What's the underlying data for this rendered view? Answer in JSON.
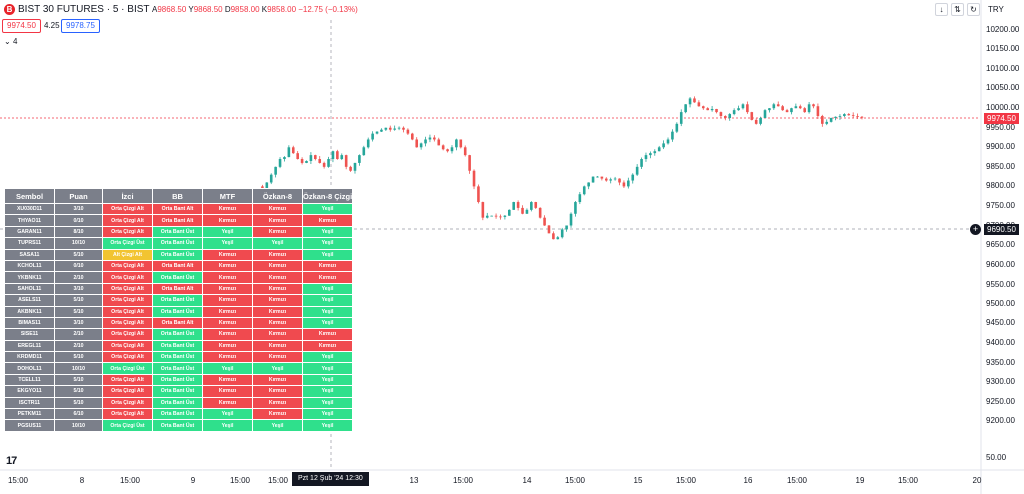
{
  "header": {
    "title": "BIST 30 FUTURES · 5 · BIST",
    "ohlc": [
      {
        "k": "A",
        "v": "9868.50"
      },
      {
        "k": "Y",
        "v": "9868.50"
      },
      {
        "k": "D",
        "v": "9858.00"
      },
      {
        "k": "K",
        "v": "9858.00"
      },
      {
        "k": "",
        "v": "−12.75 (−0.13%)"
      }
    ],
    "bid": "9974.50",
    "spread": "4.25",
    "ask": "9978.75",
    "indicators_collapsed": "4",
    "currency": "TRY"
  },
  "colors": {
    "up": "#26a69a",
    "down": "#ef5350",
    "price_tag": "#f23645",
    "table_header": "#7b7f8a",
    "red": "#f04a4f",
    "green": "#2fe08c",
    "yellow": "#f2c431"
  },
  "y_axis": {
    "ticks": [
      "10200.00",
      "10150.00",
      "10100.00",
      "10050.00",
      "10000.00",
      "9950.00",
      "9900.00",
      "9850.00",
      "9800.00",
      "9750.00",
      "9700.00",
      "9650.00",
      "9600.00",
      "9550.00",
      "9500.00",
      "9450.00",
      "9400.00",
      "9350.00",
      "9300.00",
      "9250.00",
      "9200.00",
      "50.00"
    ],
    "last_price": "9974.50",
    "crosshair_price": "9690.50"
  },
  "x_axis": {
    "ticks": [
      "15:00",
      "8",
      "15:00",
      "9",
      "15:00",
      "15:00",
      "13",
      "15:00",
      "14",
      "15:00",
      "15",
      "15:00",
      "16",
      "15:00",
      "19",
      "15:00",
      "20"
    ],
    "crosshair_label": "Pzt 12 Şub '24   12:30"
  },
  "chart_data": {
    "type": "candlestick",
    "ylim": [
      9180,
      10230
    ],
    "last_price": 9974.5,
    "crosshair_price": 9690.5,
    "close_path": [
      9800,
      9795,
      9810,
      9830,
      9850,
      9870,
      9875,
      9900,
      9885,
      9870,
      9860,
      9865,
      9880,
      9870,
      9860,
      9850,
      9870,
      9890,
      9870,
      9880,
      9850,
      9840,
      9860,
      9880,
      9900,
      9920,
      9935,
      9940,
      9945,
      9950,
      9945,
      9948,
      9950,
      9945,
      9935,
      9920,
      9900,
      9910,
      9920,
      9925,
      9920,
      9905,
      9895,
      9890,
      9900,
      9920,
      9900,
      9880,
      9840,
      9800,
      9760,
      9720,
      9725,
      9725,
      9723,
      9722,
      9725,
      9740,
      9760,
      9745,
      9730,
      9740,
      9760,
      9745,
      9720,
      9700,
      9680,
      9665,
      9670,
      9690,
      9700,
      9730,
      9760,
      9780,
      9800,
      9810,
      9825,
      9825,
      9820,
      9815,
      9818,
      9820,
      9810,
      9800,
      9815,
      9830,
      9850,
      9870,
      9880,
      9885,
      9890,
      9900,
      9910,
      9920,
      9940,
      9960,
      9990,
      10010,
      10025,
      10015,
      10005,
      10000,
      9995,
      9998,
      9990,
      9980,
      9975,
      9985,
      9995,
      10000,
      10010,
      9990,
      9970,
      9960,
      9975,
      9995,
      10000,
      10010,
      10005,
      9995,
      9990,
      10000,
      10005,
      10000,
      9990,
      10010,
      10005,
      9980,
      9960,
      9965,
      9975,
      9978,
      9980,
      9985,
      9982,
      9980,
      9978,
      9976
    ],
    "start_x": 258,
    "end_x": 862
  },
  "table": {
    "headers": [
      "Sembol",
      "Puan",
      "İzci",
      "BB",
      "MTF",
      "Özkan-8",
      "Özkan-8 Çizgi"
    ],
    "rows": [
      [
        [
          "XU030D11",
          "gray"
        ],
        [
          "3/10",
          "gray"
        ],
        [
          "Orta Çizgi Alt",
          "red"
        ],
        [
          "Orta Bant Alt",
          "red"
        ],
        [
          "Kırmızı",
          "red"
        ],
        [
          "Kırmızı",
          "red"
        ],
        [
          "Yeşil",
          "green"
        ]
      ],
      [
        [
          "THYAO11",
          "gray"
        ],
        [
          "0/10",
          "gray"
        ],
        [
          "Orta Çizgi Alt",
          "red"
        ],
        [
          "Orta Bant Alt",
          "red"
        ],
        [
          "Kırmızı",
          "red"
        ],
        [
          "Kırmızı",
          "red"
        ],
        [
          "Kırmızı",
          "red"
        ]
      ],
      [
        [
          "GARAN11",
          "gray"
        ],
        [
          "8/10",
          "gray"
        ],
        [
          "Orta Çizgi Alt",
          "red"
        ],
        [
          "Orta Bant Üst",
          "green"
        ],
        [
          "Yeşil",
          "green"
        ],
        [
          "Kırmızı",
          "red"
        ],
        [
          "Yeşil",
          "green"
        ]
      ],
      [
        [
          "TUPRS11",
          "gray"
        ],
        [
          "10/10",
          "gray"
        ],
        [
          "Orta Çizgi Üst",
          "green"
        ],
        [
          "Orta Bant Üst",
          "green"
        ],
        [
          "Yeşil",
          "green"
        ],
        [
          "Yeşil",
          "green"
        ],
        [
          "Yeşil",
          "green"
        ]
      ],
      [
        [
          "SASA11",
          "gray"
        ],
        [
          "5/10",
          "gray"
        ],
        [
          "Alt Çizgi Alt",
          "yellow"
        ],
        [
          "Orta Bant Üst",
          "green"
        ],
        [
          "Kırmızı",
          "red"
        ],
        [
          "Kırmızı",
          "red"
        ],
        [
          "Yeşil",
          "green"
        ]
      ],
      [
        [
          "KCHOL11",
          "gray"
        ],
        [
          "0/10",
          "gray"
        ],
        [
          "Orta Çizgi Alt",
          "red"
        ],
        [
          "Orta Bant Alt",
          "red"
        ],
        [
          "Kırmızı",
          "red"
        ],
        [
          "Kırmızı",
          "red"
        ],
        [
          "Kırmızı",
          "red"
        ]
      ],
      [
        [
          "YKBNK11",
          "gray"
        ],
        [
          "2/10",
          "gray"
        ],
        [
          "Orta Çizgi Alt",
          "red"
        ],
        [
          "Orta Bant Üst",
          "green"
        ],
        [
          "Kırmızı",
          "red"
        ],
        [
          "Kırmızı",
          "red"
        ],
        [
          "Kırmızı",
          "red"
        ]
      ],
      [
        [
          "SAHOL11",
          "gray"
        ],
        [
          "3/10",
          "gray"
        ],
        [
          "Orta Çizgi Alt",
          "red"
        ],
        [
          "Orta Bant Alt",
          "red"
        ],
        [
          "Kırmızı",
          "red"
        ],
        [
          "Kırmızı",
          "red"
        ],
        [
          "Yeşil",
          "green"
        ]
      ],
      [
        [
          "ASELS11",
          "gray"
        ],
        [
          "5/10",
          "gray"
        ],
        [
          "Orta Çizgi Alt",
          "red"
        ],
        [
          "Orta Bant Üst",
          "green"
        ],
        [
          "Kırmızı",
          "red"
        ],
        [
          "Kırmızı",
          "red"
        ],
        [
          "Yeşil",
          "green"
        ]
      ],
      [
        [
          "AKBNK11",
          "gray"
        ],
        [
          "5/10",
          "gray"
        ],
        [
          "Orta Çizgi Alt",
          "red"
        ],
        [
          "Orta Bant Üst",
          "green"
        ],
        [
          "Kırmızı",
          "red"
        ],
        [
          "Kırmızı",
          "red"
        ],
        [
          "Yeşil",
          "green"
        ]
      ],
      [
        [
          "BIMAS11",
          "gray"
        ],
        [
          "3/10",
          "gray"
        ],
        [
          "Orta Çizgi Alt",
          "red"
        ],
        [
          "Orta Bant Alt",
          "red"
        ],
        [
          "Kırmızı",
          "red"
        ],
        [
          "Kırmızı",
          "red"
        ],
        [
          "Yeşil",
          "green"
        ]
      ],
      [
        [
          "SISE11",
          "gray"
        ],
        [
          "2/10",
          "gray"
        ],
        [
          "Orta Çizgi Alt",
          "red"
        ],
        [
          "Orta Bant Üst",
          "green"
        ],
        [
          "Kırmızı",
          "red"
        ],
        [
          "Kırmızı",
          "red"
        ],
        [
          "Kırmızı",
          "red"
        ]
      ],
      [
        [
          "EREGL11",
          "gray"
        ],
        [
          "2/10",
          "gray"
        ],
        [
          "Orta Çizgi Alt",
          "red"
        ],
        [
          "Orta Bant Üst",
          "green"
        ],
        [
          "Kırmızı",
          "red"
        ],
        [
          "Kırmızı",
          "red"
        ],
        [
          "Kırmızı",
          "red"
        ]
      ],
      [
        [
          "KRDMD11",
          "gray"
        ],
        [
          "5/10",
          "gray"
        ],
        [
          "Orta Çizgi Alt",
          "red"
        ],
        [
          "Orta Bant Üst",
          "green"
        ],
        [
          "Kırmızı",
          "red"
        ],
        [
          "Kırmızı",
          "red"
        ],
        [
          "Yeşil",
          "green"
        ]
      ],
      [
        [
          "DOHOL11",
          "gray"
        ],
        [
          "10/10",
          "gray"
        ],
        [
          "Orta Çizgi Üst",
          "green"
        ],
        [
          "Orta Bant Üst",
          "green"
        ],
        [
          "Yeşil",
          "green"
        ],
        [
          "Yeşil",
          "green"
        ],
        [
          "Yeşil",
          "green"
        ]
      ],
      [
        [
          "TCELL11",
          "gray"
        ],
        [
          "5/10",
          "gray"
        ],
        [
          "Orta Çizgi Alt",
          "red"
        ],
        [
          "Orta Bant Üst",
          "green"
        ],
        [
          "Kırmızı",
          "red"
        ],
        [
          "Kırmızı",
          "red"
        ],
        [
          "Yeşil",
          "green"
        ]
      ],
      [
        [
          "EKGYO11",
          "gray"
        ],
        [
          "5/10",
          "gray"
        ],
        [
          "Orta Çizgi Alt",
          "red"
        ],
        [
          "Orta Bant Üst",
          "green"
        ],
        [
          "Kırmızı",
          "red"
        ],
        [
          "Kırmızı",
          "red"
        ],
        [
          "Yeşil",
          "green"
        ]
      ],
      [
        [
          "ISCTR11",
          "gray"
        ],
        [
          "5/10",
          "gray"
        ],
        [
          "Orta Çizgi Alt",
          "red"
        ],
        [
          "Orta Bant Üst",
          "green"
        ],
        [
          "Kırmızı",
          "red"
        ],
        [
          "Kırmızı",
          "red"
        ],
        [
          "Yeşil",
          "green"
        ]
      ],
      [
        [
          "PETKM11",
          "gray"
        ],
        [
          "6/10",
          "gray"
        ],
        [
          "Orta Çizgi Alt",
          "red"
        ],
        [
          "Orta Bant Üst",
          "green"
        ],
        [
          "Yeşil",
          "green"
        ],
        [
          "Kırmızı",
          "red"
        ],
        [
          "Yeşil",
          "green"
        ]
      ],
      [
        [
          "PGSUS11",
          "gray"
        ],
        [
          "10/10",
          "gray"
        ],
        [
          "Orta Çizgi Üst",
          "green"
        ],
        [
          "Orta Bant Üst",
          "green"
        ],
        [
          "Yeşil",
          "green"
        ],
        [
          "Yeşil",
          "green"
        ],
        [
          "Yeşil",
          "green"
        ]
      ]
    ]
  }
}
